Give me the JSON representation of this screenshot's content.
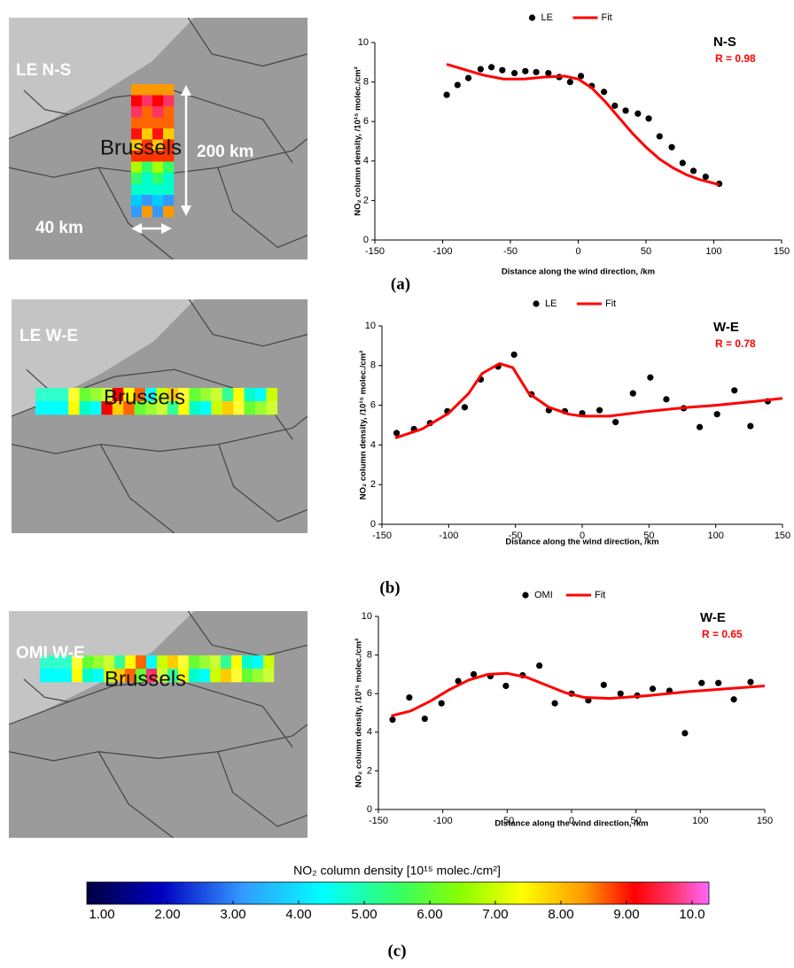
{
  "chart_data": [
    {
      "type": "scatter",
      "panel_label": "(a)",
      "annotations": [
        {
          "text": "N-S",
          "color": "#000000"
        },
        {
          "text": "R = 0.98",
          "color": "#ff0000"
        }
      ],
      "x_label": "Distance along the wind direction, /km",
      "y_label": "NO₂ column density, /10¹⁵ molec./cm²",
      "xlim": [
        -150,
        150
      ],
      "xticks": [
        -150,
        -100,
        -50,
        0,
        50,
        100,
        150
      ],
      "ylim": [
        0,
        10
      ],
      "yticks": [
        0,
        2,
        4,
        6,
        8,
        10
      ],
      "series": [
        {
          "name": "LE",
          "type": "scatter",
          "color": "#000000",
          "x": [
            -97,
            -89,
            -81,
            -72,
            -64,
            -56,
            -47,
            -39,
            -31,
            -22,
            -14,
            -6,
            2,
            10,
            19,
            27,
            35,
            44,
            52,
            60,
            69,
            77,
            85,
            94,
            104
          ],
          "values": [
            7.35,
            7.85,
            8.2,
            8.65,
            8.75,
            8.6,
            8.45,
            8.55,
            8.5,
            8.45,
            8.25,
            8.0,
            8.3,
            7.8,
            7.5,
            6.8,
            6.55,
            6.4,
            6.15,
            5.25,
            4.7,
            3.9,
            3.5,
            3.2,
            2.85
          ]
        },
        {
          "name": "Fit",
          "type": "line",
          "color": "#ff0000",
          "x": [
            -97,
            -85,
            -70,
            -55,
            -40,
            -25,
            -10,
            0,
            10,
            20,
            30,
            40,
            50,
            60,
            70,
            80,
            90,
            104
          ],
          "values": [
            8.9,
            8.65,
            8.35,
            8.15,
            8.15,
            8.25,
            8.3,
            8.15,
            7.7,
            7.0,
            6.2,
            5.4,
            4.7,
            4.1,
            3.65,
            3.3,
            3.05,
            2.8
          ]
        }
      ]
    },
    {
      "type": "scatter",
      "panel_label": "(b)",
      "annotations": [
        {
          "text": "W-E",
          "color": "#000000"
        },
        {
          "text": "R = 0.78",
          "color": "#ff0000"
        }
      ],
      "x_label": "Distance along the wind direction, /km",
      "y_label": "NO₂ column density, /10¹⁵ molec./cm²",
      "xlim": [
        -150,
        150
      ],
      "xticks": [
        -150,
        -100,
        -50,
        0,
        50,
        100,
        150
      ],
      "ylim": [
        0,
        10
      ],
      "yticks": [
        0,
        2,
        4,
        6,
        8,
        10
      ],
      "series": [
        {
          "name": "LE",
          "type": "scatter",
          "color": "#000000",
          "x": [
            -139,
            -126,
            -114,
            -101,
            -88,
            -76,
            -63,
            -51,
            -38,
            -25,
            -13,
            0,
            13,
            25,
            38,
            51,
            63,
            76,
            88,
            101,
            114,
            126,
            139
          ],
          "values": [
            4.6,
            4.8,
            5.1,
            5.7,
            5.9,
            7.3,
            7.95,
            8.55,
            6.55,
            5.75,
            5.7,
            5.6,
            5.75,
            5.15,
            6.6,
            7.4,
            6.3,
            5.85,
            4.9,
            5.55,
            6.75,
            4.95,
            6.2
          ]
        },
        {
          "name": "Fit",
          "type": "line",
          "color": "#ff0000",
          "x": [
            -140,
            -120,
            -100,
            -85,
            -75,
            -62,
            -52,
            -40,
            -25,
            -10,
            0,
            20,
            50,
            80,
            100,
            130,
            150
          ],
          "values": [
            4.35,
            4.8,
            5.6,
            6.6,
            7.6,
            8.1,
            7.9,
            6.6,
            5.9,
            5.55,
            5.45,
            5.45,
            5.7,
            5.9,
            6.0,
            6.2,
            6.35
          ]
        }
      ]
    },
    {
      "type": "scatter",
      "panel_label": "(c)",
      "annotations": [
        {
          "text": "W-E",
          "color": "#000000"
        },
        {
          "text": "R = 0.65",
          "color": "#ff0000"
        }
      ],
      "x_label": "Distance along the wind direction, /km",
      "y_label": "NO₂ column density, /10¹⁵ molec./cm²",
      "xlim": [
        -150,
        150
      ],
      "xticks": [
        -150,
        -100,
        -50,
        0,
        50,
        100,
        150
      ],
      "ylim": [
        0,
        10
      ],
      "yticks": [
        0,
        2,
        4,
        6,
        8,
        10
      ],
      "series": [
        {
          "name": "OMI",
          "type": "scatter",
          "color": "#000000",
          "x": [
            -139,
            -126,
            -114,
            -101,
            -88,
            -76,
            -63,
            -51,
            -38,
            -25,
            -13,
            0,
            13,
            25,
            38,
            51,
            63,
            76,
            88,
            101,
            114,
            126,
            139
          ],
          "values": [
            4.65,
            5.8,
            4.7,
            5.5,
            6.65,
            7.0,
            6.9,
            6.4,
            6.95,
            7.45,
            5.5,
            6.0,
            5.65,
            6.45,
            6.0,
            5.9,
            6.25,
            6.15,
            3.95,
            6.55,
            6.55,
            5.7,
            6.6
          ]
        },
        {
          "name": "Fit",
          "type": "line",
          "color": "#ff0000",
          "x": [
            -140,
            -125,
            -110,
            -95,
            -80,
            -65,
            -50,
            -35,
            -20,
            -5,
            10,
            30,
            60,
            90,
            120,
            150
          ],
          "values": [
            4.85,
            5.1,
            5.6,
            6.2,
            6.7,
            7.0,
            7.05,
            6.85,
            6.45,
            6.05,
            5.8,
            5.75,
            5.9,
            6.1,
            6.25,
            6.4
          ]
        }
      ]
    }
  ],
  "maps": [
    {
      "label": "LE N-S",
      "city": "Brussels",
      "length": "200 km",
      "width": "40 km"
    },
    {
      "label": "LE W-E",
      "city": "Brussels"
    },
    {
      "label": "OMI W-E",
      "city": "Brussels"
    }
  ],
  "colorbar": {
    "title": "NO₂ column density [10¹⁵ molec./cm²]",
    "lim": [
      1,
      10
    ],
    "ticks": [
      {
        "value": 1,
        "label": "1.00"
      },
      {
        "value": 2,
        "label": "2.00"
      },
      {
        "value": 3,
        "label": "3.00"
      },
      {
        "value": 4,
        "label": "4.00"
      },
      {
        "value": 5,
        "label": "5.00"
      },
      {
        "value": 6,
        "label": "6.00"
      },
      {
        "value": 7,
        "label": "7.00"
      },
      {
        "value": 8,
        "label": "8.00"
      },
      {
        "value": 9,
        "label": "9.00"
      },
      {
        "value": 10,
        "label": "10.0"
      }
    ],
    "panel_label": "(c)"
  }
}
